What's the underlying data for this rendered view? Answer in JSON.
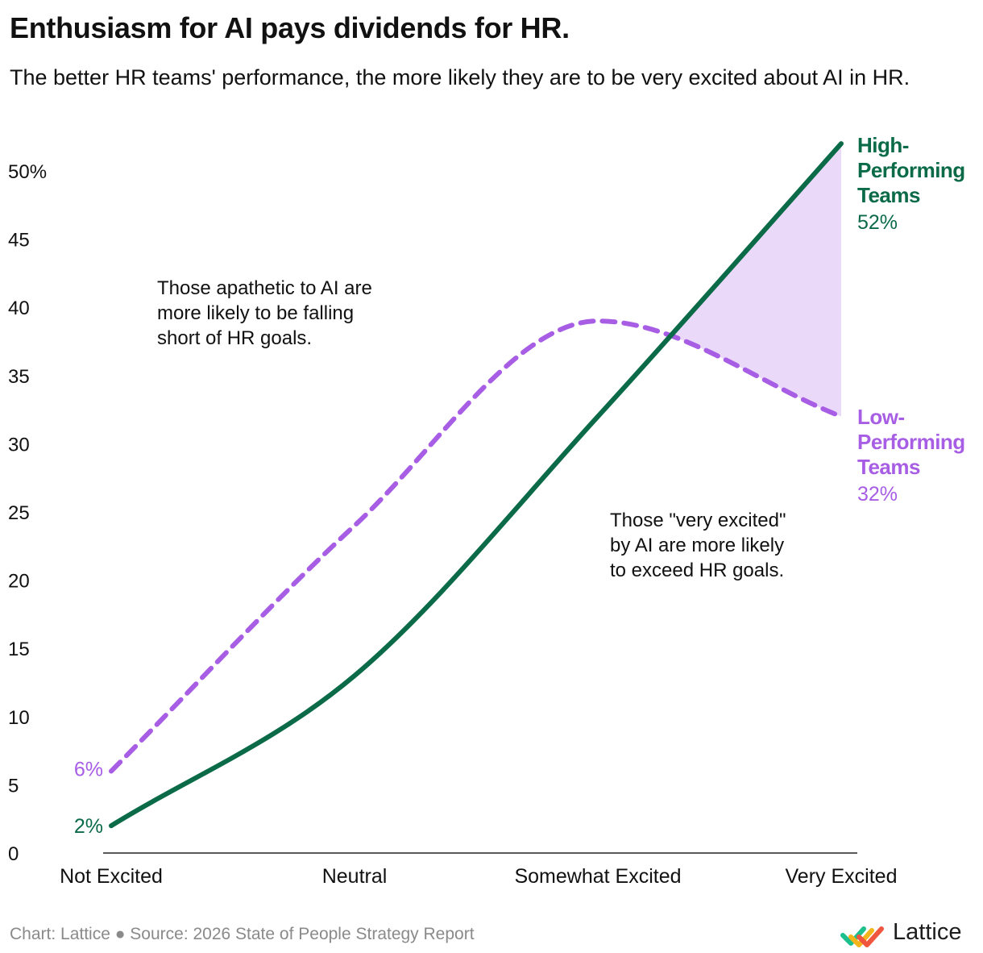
{
  "header": {
    "title": "Enthusiasm for AI pays dividends for HR.",
    "subtitle": "The better HR teams' performance, the more likely they are to be very excited about AI in HR."
  },
  "footer": {
    "credit": "Chart: Lattice",
    "separator": "●",
    "source": "Source: 2026 State of People Strategy Report"
  },
  "brand": {
    "name": "Lattice"
  },
  "colors": {
    "high": "#0b6b49",
    "low": "#a75ee4",
    "gap_fill": "#ead9f9",
    "text": "#111111",
    "muted": "#8a8a8a"
  },
  "chart_data": {
    "type": "line",
    "categories": [
      "Not Excited",
      "Neutral",
      "Somewhat Excited",
      "Very Excited"
    ],
    "ylim": [
      0,
      52
    ],
    "yticks": [
      0,
      5,
      10,
      15,
      20,
      25,
      30,
      35,
      40,
      45,
      50
    ],
    "ytick_labels": [
      "0",
      "5",
      "10",
      "15",
      "20",
      "25",
      "30",
      "35",
      "40",
      "45",
      "50%"
    ],
    "grid": false,
    "series": [
      {
        "name_lines": [
          "High-",
          "Performing",
          "Teams"
        ],
        "values": [
          2,
          13,
          32,
          52
        ],
        "start_label": "2%",
        "end_label": "52%",
        "style": "solid"
      },
      {
        "name_lines": [
          "Low-",
          "Performing",
          "Teams"
        ],
        "values": [
          6,
          24,
          39,
          32
        ],
        "start_label": "6%",
        "end_label": "32%",
        "style": "dashed"
      }
    ],
    "annotations": [
      {
        "lines": [
          "Those apathetic to AI are",
          "more likely to be falling",
          "short of HR goals."
        ]
      },
      {
        "lines": [
          "Those \"very excited\"",
          "by AI are more likely",
          "to exceed HR goals."
        ]
      }
    ]
  }
}
